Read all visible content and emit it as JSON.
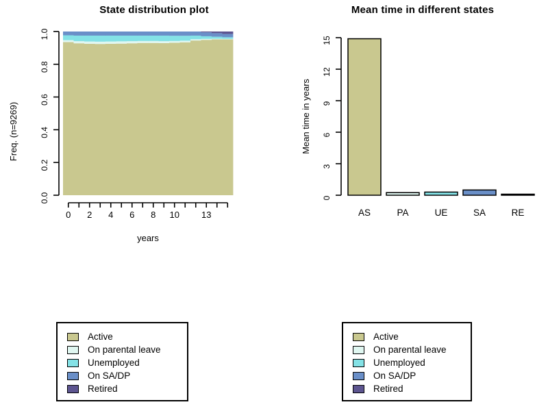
{
  "figure": {
    "background": "#ffffff",
    "axis_color": "#000000",
    "text_color": "#000000"
  },
  "states": [
    {
      "code": "AS",
      "label": "Active",
      "color": "#c9c88f"
    },
    {
      "code": "PA",
      "label": "On parental leave",
      "color": "#e0f7f1"
    },
    {
      "code": "UE",
      "label": "Unemployed",
      "color": "#84e2e6"
    },
    {
      "code": "SA",
      "label": "On SA/DP",
      "color": "#6a8fc8"
    },
    {
      "code": "RE",
      "label": "Retired",
      "color": "#5d5590"
    }
  ],
  "chart_data": [
    {
      "type": "area",
      "stacked": true,
      "title": "State distribution plot",
      "xlabel": "years",
      "ylabel": "Freq. (n=9269)",
      "ylim": [
        0,
        1
      ],
      "grid": false,
      "x": [
        0,
        1,
        2,
        3,
        4,
        5,
        6,
        7,
        8,
        9,
        10,
        11,
        12,
        13,
        14,
        15
      ],
      "xtick_labels": [
        "0",
        "2",
        "4",
        "6",
        "8",
        "10",
        "13"
      ],
      "xtick_label_positions": [
        0,
        2,
        4,
        6,
        8,
        10,
        13
      ],
      "ytick_labels": [
        "0.0",
        "0.2",
        "0.4",
        "0.6",
        "0.8",
        "1.0"
      ],
      "yticks": [
        0,
        0.2,
        0.4,
        0.6,
        0.8,
        1.0
      ],
      "series": [
        {
          "name": "Active",
          "values": [
            0.935,
            0.928,
            0.925,
            0.924,
            0.925,
            0.926,
            0.928,
            0.93,
            0.93,
            0.929,
            0.931,
            0.934,
            0.945,
            0.949,
            0.952,
            0.952
          ]
        },
        {
          "name": "On parental leave",
          "values": [
            0.012,
            0.013,
            0.014,
            0.014,
            0.014,
            0.014,
            0.013,
            0.012,
            0.012,
            0.012,
            0.011,
            0.01,
            0.008,
            0.006,
            0.004,
            0.003
          ]
        },
        {
          "name": "Unemployed",
          "values": [
            0.03,
            0.034,
            0.036,
            0.037,
            0.036,
            0.035,
            0.034,
            0.033,
            0.033,
            0.034,
            0.032,
            0.03,
            0.022,
            0.016,
            0.012,
            0.01
          ]
        },
        {
          "name": "On SA/DP",
          "values": [
            0.023,
            0.025,
            0.025,
            0.025,
            0.025,
            0.025,
            0.025,
            0.025,
            0.025,
            0.025,
            0.026,
            0.026,
            0.025,
            0.024,
            0.022,
            0.02
          ]
        },
        {
          "name": "Retired",
          "values": [
            0.0,
            0.0,
            0.0,
            0.0,
            0.0,
            0.0,
            0.0,
            0.0,
            0.0,
            0.0,
            0.0,
            0.0,
            0.0,
            0.005,
            0.01,
            0.015
          ]
        }
      ]
    },
    {
      "type": "bar",
      "title": "Mean time in different states",
      "xlabel": "",
      "ylabel": "Mean time in years",
      "ylim": [
        0,
        15
      ],
      "grid": false,
      "categories": [
        "AS",
        "PA",
        "UE",
        "SA",
        "RE"
      ],
      "values": [
        14.9,
        0.25,
        0.3,
        0.5,
        0.1
      ],
      "yticks": [
        0,
        3,
        6,
        9,
        12,
        15
      ],
      "ytick_labels": [
        "0",
        "3",
        "6",
        "9",
        "12",
        "15"
      ]
    }
  ]
}
